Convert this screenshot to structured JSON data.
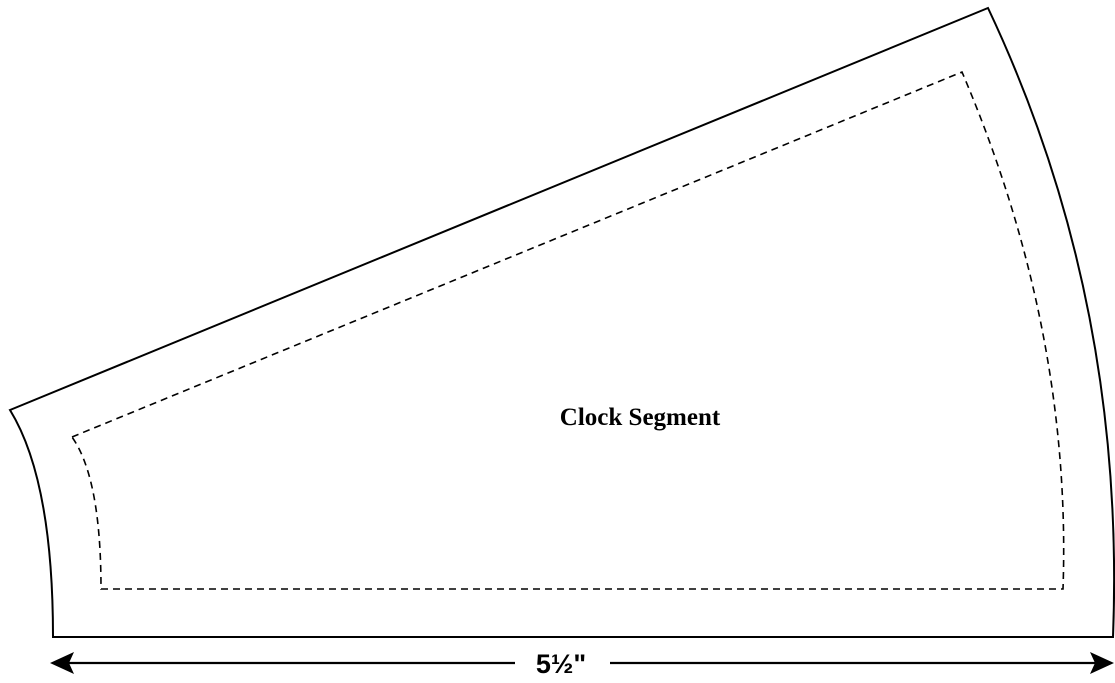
{
  "pattern": {
    "piece_label": "Clock Segment",
    "dimension_label": "5½\"",
    "line_color": "#000000",
    "background_color": "#ffffff",
    "cut_line_style": "solid",
    "seam_line_style": "dashed",
    "arrow_icon_left": "arrow-left-icon",
    "arrow_icon_right": "arrow-right-icon"
  }
}
